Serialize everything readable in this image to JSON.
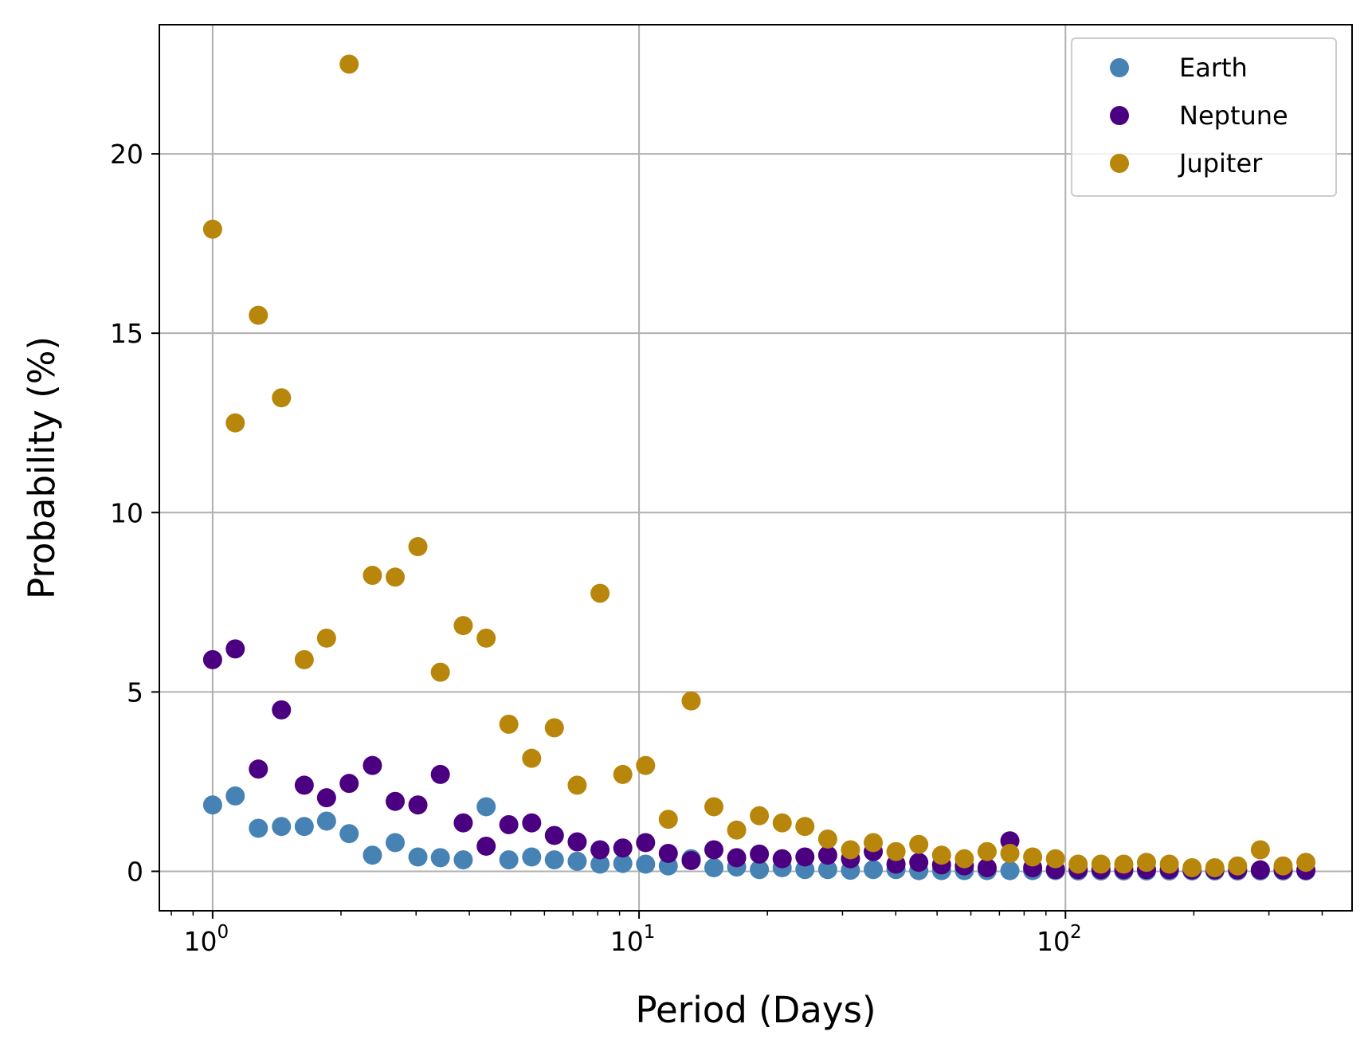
{
  "chart_data": {
    "type": "scatter",
    "title": "",
    "xlabel": "Period (Days)",
    "ylabel": "Probability (%)",
    "xscale": "log",
    "xlim": [
      0.75,
      470
    ],
    "ylim": [
      -1.1,
      23.6
    ],
    "grid": true,
    "legend_position": "top-right",
    "yticks": [
      {
        "value": 0,
        "label": "0"
      },
      {
        "value": 5,
        "label": "5"
      },
      {
        "value": 10,
        "label": "10"
      },
      {
        "value": 15,
        "label": "15"
      },
      {
        "value": 20,
        "label": "20"
      }
    ],
    "xticks": [
      {
        "value": 1,
        "base": "10",
        "exp": "0"
      },
      {
        "value": 10,
        "base": "10",
        "exp": "1"
      },
      {
        "value": 100,
        "base": "10",
        "exp": "2"
      }
    ],
    "x": [
      1.0,
      1.13,
      1.28,
      1.45,
      1.64,
      1.85,
      2.09,
      2.37,
      2.68,
      3.03,
      3.42,
      3.87,
      4.38,
      4.95,
      5.6,
      6.33,
      7.16,
      8.1,
      9.16,
      10.36,
      11.71,
      13.25,
      14.98,
      16.94,
      19.15,
      21.66,
      24.49,
      27.7,
      31.32,
      35.42,
      40.05,
      45.29,
      51.22,
      57.92,
      65.5,
      74.07,
      83.76,
      94.72,
      107.1,
      121.1,
      137.0,
      154.9,
      175.2,
      198.1,
      224.0,
      253.3,
      286.4,
      323.9,
      366.3
    ],
    "series": [
      {
        "name": "Earth",
        "color": "#4682b4",
        "values": [
          1.85,
          2.1,
          1.2,
          1.25,
          1.25,
          1.4,
          1.05,
          0.45,
          0.8,
          0.4,
          0.38,
          0.32,
          1.8,
          0.32,
          0.4,
          0.32,
          0.28,
          0.2,
          0.22,
          0.2,
          0.15,
          0.35,
          0.1,
          0.12,
          0.05,
          0.1,
          0.05,
          0.05,
          0.03,
          0.05,
          0.05,
          0.02,
          0.02,
          0.02,
          0.02,
          0.02,
          0.02,
          0.02,
          0.01,
          0.01,
          0.01,
          0.01,
          0.01,
          0.01,
          0.01,
          0.01,
          0.01,
          0.01,
          0.01
        ]
      },
      {
        "name": "Neptune",
        "color": "#4b0082",
        "values": [
          5.9,
          6.2,
          2.85,
          4.5,
          2.4,
          2.05,
          2.45,
          2.95,
          1.95,
          1.85,
          2.7,
          1.35,
          0.7,
          1.3,
          1.35,
          1.0,
          0.82,
          0.6,
          0.65,
          0.8,
          0.5,
          0.3,
          0.6,
          0.38,
          0.48,
          0.35,
          0.4,
          0.45,
          0.35,
          0.55,
          0.2,
          0.25,
          0.18,
          0.15,
          0.1,
          0.85,
          0.1,
          0.05,
          0.05,
          0.05,
          0.05,
          0.05,
          0.05,
          0.04,
          0.04,
          0.04,
          0.04,
          0.04,
          0.03
        ]
      },
      {
        "name": "Jupiter",
        "color": "#b8860b",
        "values": [
          17.9,
          12.5,
          15.5,
          13.2,
          5.9,
          6.5,
          22.5,
          8.25,
          8.2,
          9.05,
          5.55,
          6.85,
          6.5,
          4.1,
          3.15,
          4.0,
          2.4,
          7.75,
          2.7,
          2.95,
          1.45,
          4.75,
          1.8,
          1.15,
          1.55,
          1.35,
          1.25,
          0.9,
          0.6,
          0.8,
          0.55,
          0.75,
          0.45,
          0.35,
          0.55,
          0.5,
          0.4,
          0.35,
          0.2,
          0.2,
          0.2,
          0.25,
          0.2,
          0.1,
          0.1,
          0.15,
          0.6,
          0.15,
          0.25
        ]
      }
    ]
  }
}
